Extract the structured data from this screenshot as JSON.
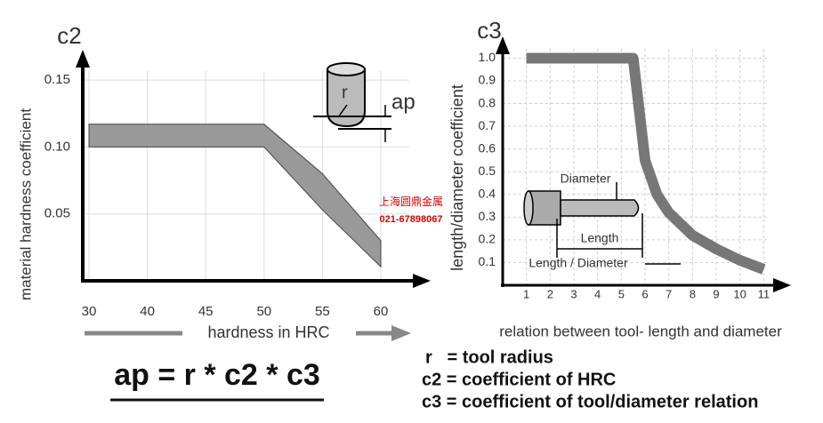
{
  "chart_data": [
    {
      "type": "band",
      "title": "c2",
      "ylabel": "material hardness coefficient",
      "xlabel": "hardness in HRC",
      "categories": [
        "30",
        "40",
        "45",
        "50",
        "55",
        "60"
      ],
      "band_upper": [
        0.117,
        0.117,
        0.117,
        0.117,
        0.08,
        0.03
      ],
      "band_lower": [
        0.1,
        0.1,
        0.1,
        0.1,
        0.053,
        0.0105
      ],
      "color": "#999999",
      "ylim": [
        0,
        0.17
      ],
      "yticks": [
        0.05,
        {
          "value": 0.1,
          "label": "0.10"
        },
        0.15
      ],
      "grid": true,
      "annotations": [
        "r",
        "ap"
      ]
    },
    {
      "type": "line",
      "title": "c3",
      "ylabel": "length/diameter coefficient",
      "xlabel": "relation between tool- length and diameter",
      "x": [
        1,
        2,
        3,
        4,
        5,
        5.5,
        6,
        6.5,
        7,
        8,
        9,
        10,
        11
      ],
      "values": [
        1,
        1,
        1,
        1,
        1,
        1,
        0.55,
        0.4,
        0.32,
        0.22,
        0.16,
        0.11,
        0.07
      ],
      "color": "#777777",
      "xlim": [
        0,
        12
      ],
      "ylim": [
        0,
        1.08
      ],
      "xticks": [
        1,
        2,
        3,
        4,
        5,
        6,
        7,
        8,
        9,
        10,
        11
      ],
      "yticks": [
        0.1,
        0.2,
        0.3,
        0.4,
        0.5,
        0.6,
        0.7,
        0.8,
        0.9,
        {
          "value": 1,
          "label": "1.0"
        }
      ],
      "grid": true,
      "annotations": [
        "Diameter",
        "Length",
        "Length / Diameter"
      ]
    }
  ],
  "formula": "ap = r * c2 * c3",
  "definitions": [
    "r   = tool radius",
    "c2 = coefficient of HRC",
    "c3 = coefficient of tool/diameter relation"
  ],
  "watermark": [
    "上海圆鼎金属",
    "021-67898067"
  ]
}
